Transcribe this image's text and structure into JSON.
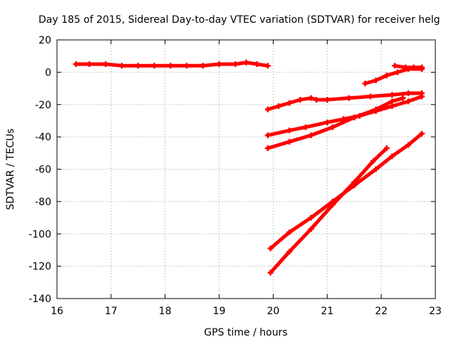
{
  "chart_data": {
    "type": "scatter",
    "title": "Day 185 of 2015, Sidereal Day-to-day VTEC variation (SDTVAR) for receiver helg",
    "xlabel": "GPS time / hours",
    "ylabel": "SDTVAR / TECUs",
    "xlim": [
      16,
      23
    ],
    "ylim": [
      -140,
      20
    ],
    "xticks": [
      "16",
      "17",
      "18",
      "19",
      "20",
      "21",
      "22",
      "23"
    ],
    "yticks": [
      "20",
      "0",
      "-20",
      "-40",
      "-60",
      "-80",
      "-100",
      "-120",
      "-140"
    ],
    "grid": true,
    "marker_color": "#ff0000",
    "series": [
      {
        "x": [
          16.35,
          16.6,
          16.9,
          17.2,
          17.5,
          17.8,
          18.1,
          18.4,
          18.7,
          19.0,
          19.3,
          19.5,
          19.7,
          19.9
        ],
        "y": [
          5,
          5,
          5,
          4,
          4,
          4,
          4,
          4,
          4,
          5,
          5,
          6,
          5,
          4
        ]
      },
      {
        "x": [
          19.9,
          20.1,
          20.3,
          20.5,
          20.7,
          20.8,
          21.0,
          21.4,
          21.8,
          22.2,
          22.5,
          22.75
        ],
        "y": [
          -23,
          -21,
          -19,
          -17,
          -16,
          -17,
          -17,
          -16,
          -15,
          -14,
          -13,
          -13
        ]
      },
      {
        "x": [
          19.9,
          20.3,
          20.6,
          21.0,
          21.3,
          21.6,
          21.9,
          22.2,
          22.5,
          22.75
        ],
        "y": [
          -39,
          -36,
          -34,
          -31,
          -29,
          -27,
          -24,
          -21,
          -18,
          -15
        ]
      },
      {
        "x": [
          19.9,
          20.3,
          20.7,
          21.1,
          21.5,
          21.9,
          22.2,
          22.4
        ],
        "y": [
          -47,
          -43,
          -39,
          -34,
          -28,
          -23,
          -18,
          -16
        ]
      },
      {
        "x": [
          21.7,
          21.9,
          22.1,
          22.3,
          22.5,
          22.75
        ],
        "y": [
          -7,
          -5,
          -2,
          0,
          2,
          2
        ]
      },
      {
        "x": [
          22.25,
          22.45,
          22.6,
          22.75
        ],
        "y": [
          4,
          3,
          3,
          3
        ]
      },
      {
        "x": [
          19.95,
          20.3,
          20.7,
          21.1,
          21.5,
          21.9,
          22.2,
          22.5,
          22.75
        ],
        "y": [
          -109,
          -99,
          -90,
          -80,
          -70,
          -60,
          -52,
          -45,
          -38
        ]
      },
      {
        "x": [
          19.95,
          20.3,
          20.7,
          21.1,
          21.5,
          21.85,
          22.1
        ],
        "y": [
          -124,
          -111,
          -97,
          -82,
          -68,
          -55,
          -47
        ]
      }
    ]
  }
}
